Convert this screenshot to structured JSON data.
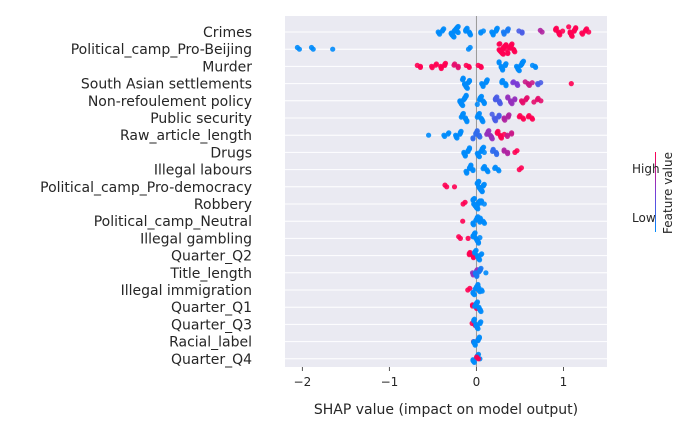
{
  "chart_data": {
    "type": "scatter",
    "subtype": "shap-beeswarm",
    "title": "",
    "xlabel": "SHAP value (impact on model output)",
    "ylabel": "",
    "xlim": [
      -2.2,
      1.5
    ],
    "xticks": [
      -2,
      -1,
      0,
      1
    ],
    "grid": "horizontal",
    "colorbar": {
      "label": "Feature value",
      "high_label": "High",
      "low_label": "Low",
      "low_color": "#008bfb",
      "high_color": "#ff0052"
    },
    "features": [
      {
        "name": "Crimes",
        "points": [
          {
            "x": -0.4,
            "v": 0.0,
            "n": 6
          },
          {
            "x": -0.25,
            "v": 0.0,
            "n": 20
          },
          {
            "x": -0.1,
            "v": 0.0,
            "n": 8
          },
          {
            "x": 0.05,
            "v": 0.0,
            "n": 3
          },
          {
            "x": 0.2,
            "v": 0.0,
            "n": 8
          },
          {
            "x": 0.35,
            "v": 0.1,
            "n": 6
          },
          {
            "x": 0.5,
            "v": 0.3,
            "n": 3
          },
          {
            "x": 0.75,
            "v": 0.7,
            "n": 2
          },
          {
            "x": 0.95,
            "v": 1.0,
            "n": 8
          },
          {
            "x": 1.1,
            "v": 1.0,
            "n": 12
          },
          {
            "x": 1.25,
            "v": 1.0,
            "n": 6
          }
        ]
      },
      {
        "name": "Political_camp_Pro-Beijing",
        "points": [
          {
            "x": -2.05,
            "v": 0.0,
            "n": 2
          },
          {
            "x": -1.88,
            "v": 0.0,
            "n": 2
          },
          {
            "x": -1.65,
            "v": 0.0,
            "n": 1
          },
          {
            "x": -0.08,
            "v": 0.0,
            "n": 2
          },
          {
            "x": 0.3,
            "v": 1.0,
            "n": 22
          },
          {
            "x": 0.4,
            "v": 1.0,
            "n": 12
          }
        ]
      },
      {
        "name": "Murder",
        "points": [
          {
            "x": -0.65,
            "v": 1.0,
            "n": 3
          },
          {
            "x": -0.5,
            "v": 1.0,
            "n": 4
          },
          {
            "x": -0.38,
            "v": 1.0,
            "n": 6
          },
          {
            "x": -0.25,
            "v": 0.9,
            "n": 4
          },
          {
            "x": -0.1,
            "v": 1.0,
            "n": 3
          },
          {
            "x": 0.05,
            "v": 1.0,
            "n": 3
          },
          {
            "x": 0.3,
            "v": 0.0,
            "n": 10
          },
          {
            "x": 0.5,
            "v": 0.0,
            "n": 12
          },
          {
            "x": 0.65,
            "v": 0.0,
            "n": 3
          }
        ]
      },
      {
        "name": "South Asian settlements",
        "points": [
          {
            "x": -0.12,
            "v": 0.0,
            "n": 14
          },
          {
            "x": 0.1,
            "v": 0.0,
            "n": 8
          },
          {
            "x": 0.3,
            "v": 0.0,
            "n": 6
          },
          {
            "x": 0.45,
            "v": 0.5,
            "n": 5
          },
          {
            "x": 0.6,
            "v": 0.8,
            "n": 5
          },
          {
            "x": 0.72,
            "v": 0.3,
            "n": 3
          },
          {
            "x": 1.1,
            "v": 1.0,
            "n": 1
          }
        ]
      },
      {
        "name": "Non-refoulement policy",
        "points": [
          {
            "x": -0.15,
            "v": 0.0,
            "n": 14
          },
          {
            "x": 0.05,
            "v": 0.0,
            "n": 10
          },
          {
            "x": 0.25,
            "v": 0.3,
            "n": 8
          },
          {
            "x": 0.4,
            "v": 0.6,
            "n": 8
          },
          {
            "x": 0.55,
            "v": 0.9,
            "n": 6
          },
          {
            "x": 0.7,
            "v": 0.9,
            "n": 4
          }
        ]
      },
      {
        "name": "Public security",
        "points": [
          {
            "x": -0.15,
            "v": 0.0,
            "n": 10
          },
          {
            "x": 0.05,
            "v": 0.0,
            "n": 10
          },
          {
            "x": 0.22,
            "v": 0.3,
            "n": 8
          },
          {
            "x": 0.35,
            "v": 0.7,
            "n": 6
          },
          {
            "x": 0.5,
            "v": 1.0,
            "n": 4
          },
          {
            "x": 0.62,
            "v": 1.0,
            "n": 4
          }
        ]
      },
      {
        "name": "Raw_article_length",
        "points": [
          {
            "x": -0.55,
            "v": 0.0,
            "n": 1
          },
          {
            "x": -0.35,
            "v": 0.0,
            "n": 4
          },
          {
            "x": -0.2,
            "v": 0.0,
            "n": 8
          },
          {
            "x": 0.0,
            "v": 0.2,
            "n": 10
          },
          {
            "x": 0.15,
            "v": 0.6,
            "n": 10
          },
          {
            "x": 0.28,
            "v": 1.0,
            "n": 8
          },
          {
            "x": 0.38,
            "v": 0.8,
            "n": 4
          }
        ]
      },
      {
        "name": "Drugs",
        "points": [
          {
            "x": -0.12,
            "v": 0.0,
            "n": 10
          },
          {
            "x": 0.05,
            "v": 0.0,
            "n": 12
          },
          {
            "x": 0.2,
            "v": 0.2,
            "n": 6
          },
          {
            "x": 0.35,
            "v": 0.7,
            "n": 4
          },
          {
            "x": 0.45,
            "v": 1.0,
            "n": 2
          }
        ]
      },
      {
        "name": "Illegal labours",
        "points": [
          {
            "x": -0.08,
            "v": 0.0,
            "n": 10
          },
          {
            "x": 0.1,
            "v": 0.0,
            "n": 6
          },
          {
            "x": 0.25,
            "v": 0.0,
            "n": 4
          },
          {
            "x": 0.5,
            "v": 1.0,
            "n": 2
          }
        ]
      },
      {
        "name": "Political_camp_Pro-democracy",
        "points": [
          {
            "x": -0.35,
            "v": 1.0,
            "n": 2
          },
          {
            "x": -0.25,
            "v": 1.0,
            "n": 1
          },
          {
            "x": 0.05,
            "v": 0.0,
            "n": 18
          }
        ]
      },
      {
        "name": "Robbery",
        "points": [
          {
            "x": -0.15,
            "v": 1.0,
            "n": 2
          },
          {
            "x": 0.0,
            "v": 0.0,
            "n": 18
          },
          {
            "x": 0.05,
            "v": 0.0,
            "n": 6
          }
        ]
      },
      {
        "name": "Political_camp_Neutral",
        "points": [
          {
            "x": -0.15,
            "v": 1.0,
            "n": 1
          },
          {
            "x": 0.0,
            "v": 0.0,
            "n": 10
          },
          {
            "x": 0.06,
            "v": 0.0,
            "n": 6
          }
        ]
      },
      {
        "name": "Illegal gambling",
        "points": [
          {
            "x": -0.2,
            "v": 1.0,
            "n": 2
          },
          {
            "x": -0.1,
            "v": 1.0,
            "n": 1
          },
          {
            "x": 0.0,
            "v": 0.0,
            "n": 14
          }
        ]
      },
      {
        "name": "Quarter_Q2",
        "points": [
          {
            "x": -0.05,
            "v": 1.0,
            "n": 6
          },
          {
            "x": 0.02,
            "v": 0.0,
            "n": 12
          }
        ]
      },
      {
        "name": "Title_length",
        "points": [
          {
            "x": -0.03,
            "v": 0.6,
            "n": 6
          },
          {
            "x": 0.02,
            "v": 0.1,
            "n": 10
          },
          {
            "x": 0.1,
            "v": 0.0,
            "n": 1
          }
        ]
      },
      {
        "name": "Illegal immigration",
        "points": [
          {
            "x": -0.08,
            "v": 1.0,
            "n": 2
          },
          {
            "x": 0.0,
            "v": 0.0,
            "n": 14
          },
          {
            "x": 0.05,
            "v": 0.0,
            "n": 4
          }
        ]
      },
      {
        "name": "Quarter_Q1",
        "points": [
          {
            "x": -0.03,
            "v": 1.0,
            "n": 4
          },
          {
            "x": 0.02,
            "v": 0.0,
            "n": 12
          }
        ]
      },
      {
        "name": "Quarter_Q3",
        "points": [
          {
            "x": -0.02,
            "v": 1.0,
            "n": 3
          },
          {
            "x": 0.01,
            "v": 0.0,
            "n": 12
          }
        ]
      },
      {
        "name": "Racial_label",
        "points": [
          {
            "x": -0.01,
            "v": 1.0,
            "n": 4
          },
          {
            "x": 0.01,
            "v": 0.0,
            "n": 10
          }
        ]
      },
      {
        "name": "Quarter_Q4",
        "points": [
          {
            "x": 0.0,
            "v": 0.0,
            "n": 10
          },
          {
            "x": 0.01,
            "v": 1.0,
            "n": 2
          }
        ]
      }
    ]
  }
}
